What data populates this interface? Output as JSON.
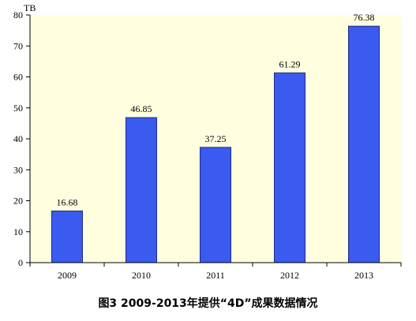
{
  "chart_data": {
    "type": "bar",
    "title": "图3  2009-2013年提供“4D”成果数据情况",
    "unit_label": "TB",
    "categories": [
      "2009",
      "2010",
      "2011",
      "2012",
      "2013"
    ],
    "values": [
      16.68,
      46.85,
      37.25,
      61.29,
      76.38
    ],
    "data_labels": [
      "16.68",
      "46.85",
      "37.25",
      "61.29",
      "76.38"
    ],
    "ylim": [
      0,
      80
    ],
    "y_ticks": [
      0,
      10,
      20,
      30,
      40,
      50,
      60,
      70,
      80
    ],
    "y_tick_labels": [
      "0",
      "10",
      "20",
      "30",
      "40",
      "50",
      "60",
      "70",
      "80"
    ],
    "grid": false,
    "legend": "none",
    "colors": {
      "bar_fill": "#3A5AF0",
      "bar_stroke": "#1F2D80",
      "plot_background": "#FFFFE0",
      "axis": "#000000"
    }
  }
}
